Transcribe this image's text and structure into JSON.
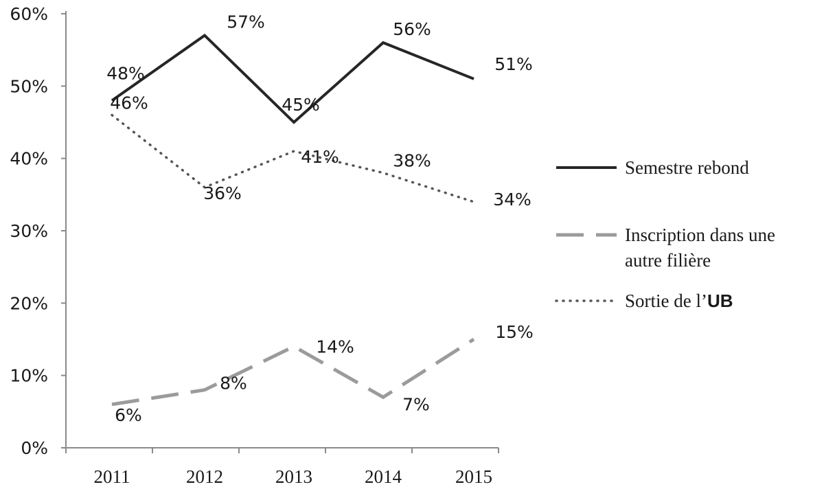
{
  "chart_data": {
    "type": "line",
    "categories": [
      "2011",
      "2012",
      "2013",
      "2014",
      "2015"
    ],
    "ylim": [
      0,
      60
    ],
    "y_ticks": [
      "0%",
      "10%",
      "20%",
      "30%",
      "40%",
      "50%",
      "60%"
    ],
    "grid": false,
    "legend_position": "right",
    "series": [
      {
        "name": "Semestre rebond",
        "values": [
          48,
          57,
          45,
          56,
          51
        ],
        "labels": [
          "48%",
          "57%",
          "45%",
          "56%",
          "51%"
        ],
        "style": "solid",
        "color": "#262626"
      },
      {
        "name": "Inscription dans une autre filière",
        "name_lines": [
          "Inscription dans une",
          "autre filière"
        ],
        "values": [
          6,
          8,
          14,
          7,
          15
        ],
        "labels": [
          "6%",
          "8%",
          "14%",
          "7%",
          "15%"
        ],
        "style": "dashed",
        "color": "#9b9b9b"
      },
      {
        "name": "Sortie de l’UB",
        "name_parts": [
          "Sortie de l’",
          "UB"
        ],
        "values": [
          46,
          36,
          41,
          38,
          34
        ],
        "labels": [
          "46%",
          "36%",
          "41%",
          "38%",
          "34%"
        ],
        "style": "dotted",
        "color": "#555555"
      }
    ]
  }
}
